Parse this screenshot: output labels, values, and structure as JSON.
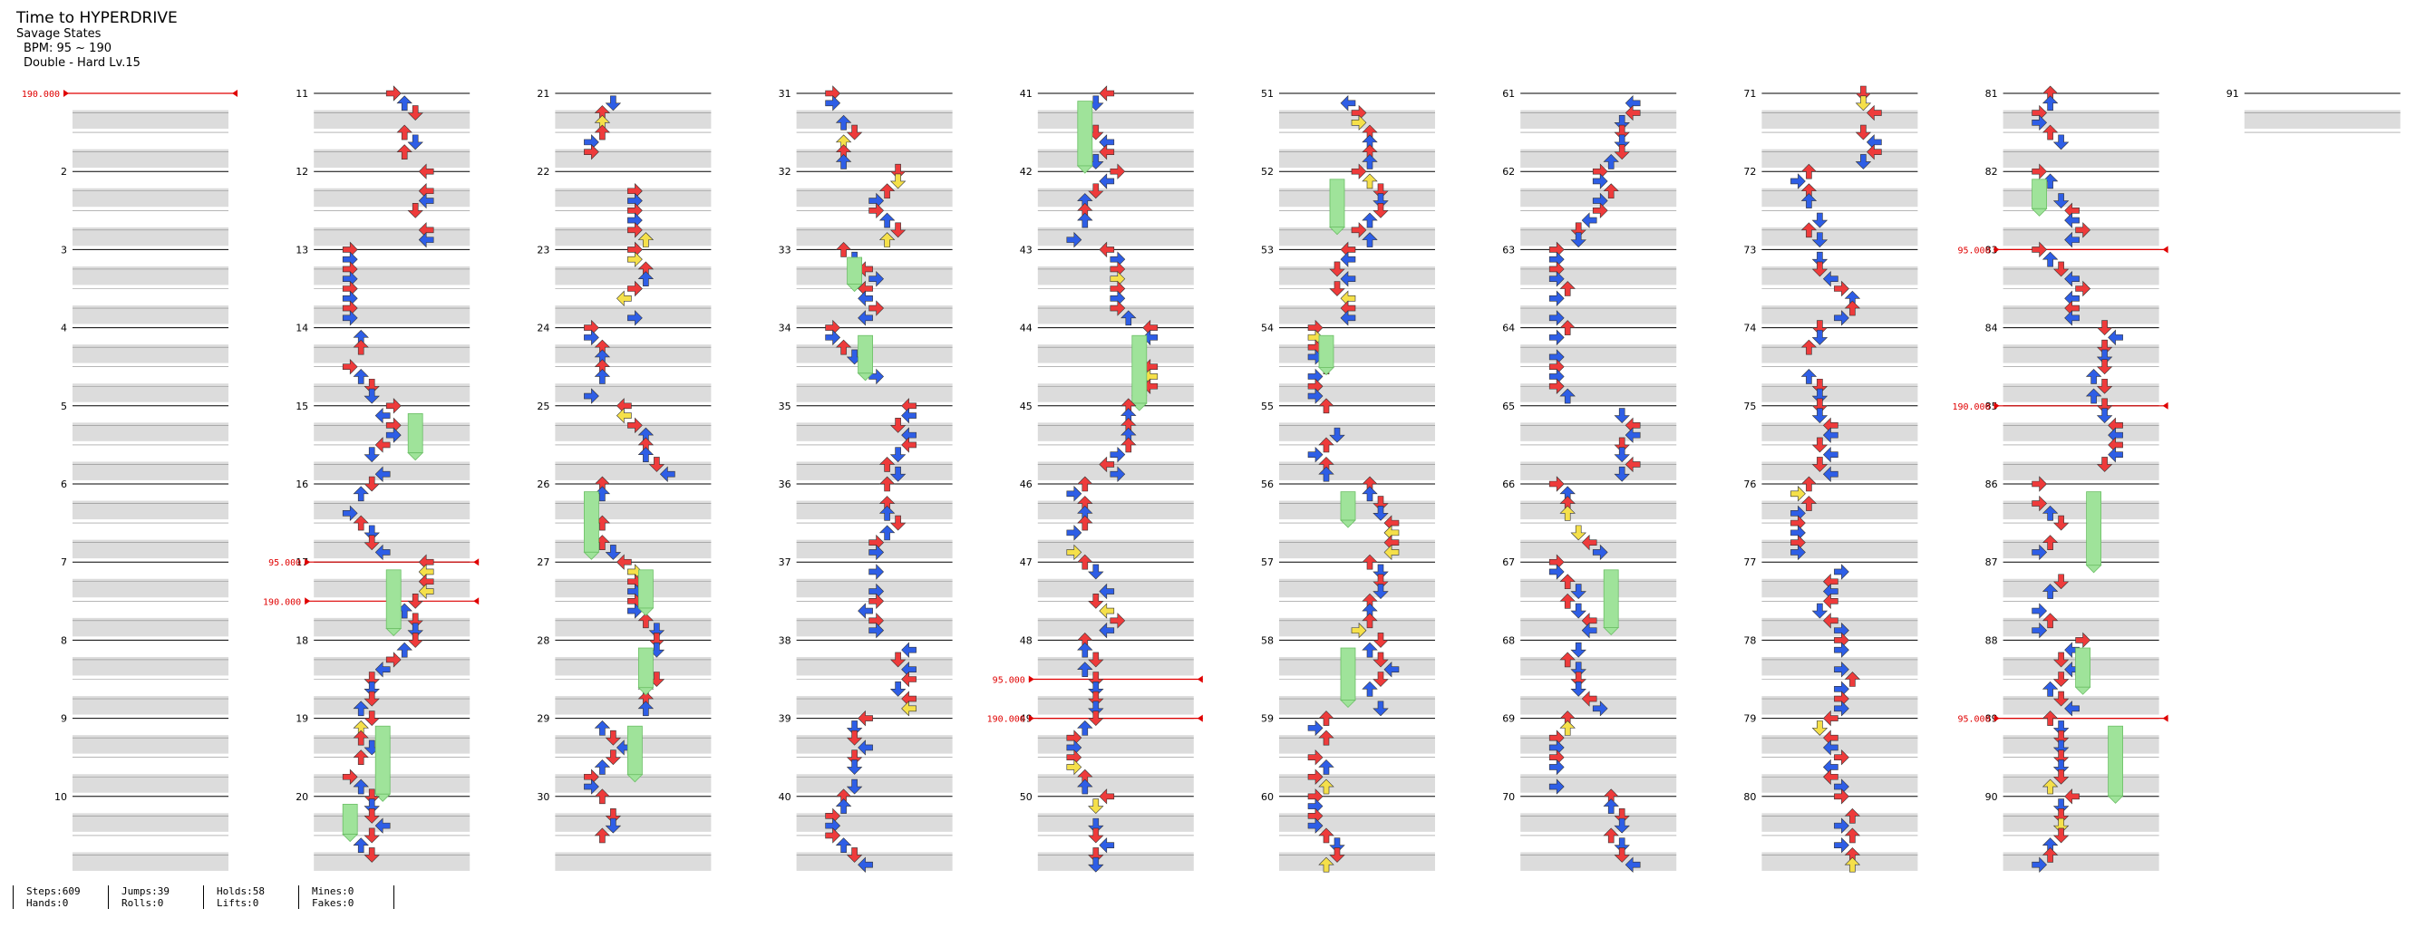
{
  "song": {
    "title": "Time to HYPERDRIVE",
    "artist": "Savage States",
    "bpm_label": "BPM: 95 ~ 190",
    "difficulty": "Double - Hard Lv.15"
  },
  "measure_numbers": [
    "2",
    "3",
    "4",
    "5",
    "6",
    "7",
    "8",
    "9",
    "10",
    "11",
    "12",
    "13",
    "14",
    "15",
    "16",
    "17",
    "18",
    "19",
    "20",
    "21",
    "22",
    "23",
    "24",
    "25",
    "26",
    "27",
    "28",
    "29",
    "30",
    "31",
    "32",
    "33",
    "34",
    "35",
    "36",
    "37",
    "38",
    "39",
    "40",
    "41",
    "42",
    "43",
    "44",
    "45",
    "46",
    "47",
    "48",
    "49",
    "50",
    "51",
    "52",
    "53",
    "54",
    "55",
    "56",
    "57",
    "58",
    "59",
    "60",
    "61",
    "62",
    "63",
    "64",
    "65",
    "66",
    "67",
    "68",
    "69",
    "70",
    "71",
    "72",
    "73",
    "74",
    "75",
    "76",
    "77",
    "78",
    "79",
    "80",
    "81",
    "82",
    "83",
    "84",
    "85",
    "86",
    "87",
    "88",
    "89",
    "90",
    "91"
  ],
  "bpm_changes": [
    {
      "measure": 1,
      "label": "190.000"
    },
    {
      "measure": 17,
      "label": "95.000"
    },
    {
      "measure": 17.5,
      "label": "190.000"
    },
    {
      "measure": 48.5,
      "label": "95.000"
    },
    {
      "measure": 49,
      "label": "190.000"
    },
    {
      "measure": 83,
      "label": "95.000"
    },
    {
      "measure": 85,
      "label": "190.000"
    },
    {
      "measure": 89,
      "label": "95.000"
    }
  ],
  "colors": {
    "quarter_arrow": "#ee3b3b",
    "eighth_arrow": "#2e5ee6",
    "sixteenth_arrow": "#f5e04a",
    "twelfth_arrow": "#a335ee",
    "hold_body": "#9fe39a",
    "roll_body": "#f3a03c",
    "bpm_line": "#e00000",
    "stripe": "#dcdcdc"
  },
  "stats": [
    {
      "top": "Steps:609",
      "bottom": "Hands:0"
    },
    {
      "top": "Jumps:39",
      "bottom": "Rolls:0"
    },
    {
      "top": "Holds:58",
      "bottom": "Lifts:0"
    },
    {
      "top": "Mines:0",
      "bottom": "Fakes:0"
    }
  ]
}
